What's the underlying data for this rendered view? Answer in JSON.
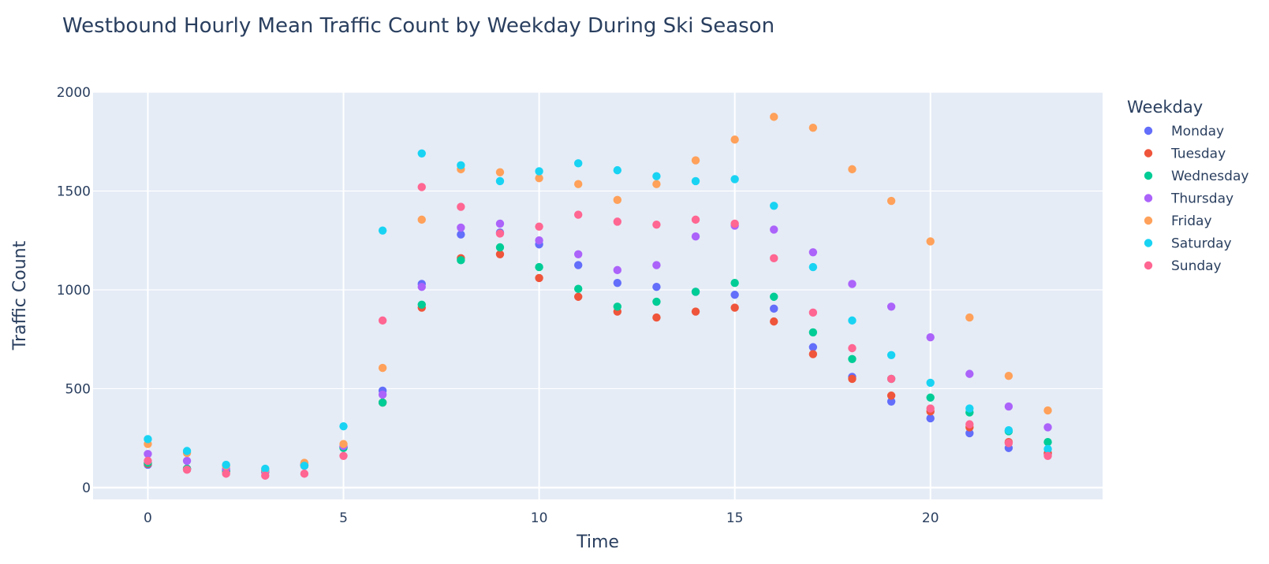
{
  "chart_data": {
    "type": "scatter",
    "title": "Westbound Hourly Mean Traffic Count by Weekday During Ski Season",
    "xlabel": "Time",
    "ylabel": "Traffic Count",
    "xlim": [
      -1.4,
      24.4
    ],
    "ylim": [
      -60,
      2000
    ],
    "x_ticks": [
      0,
      5,
      10,
      15,
      20
    ],
    "y_ticks": [
      0,
      500,
      1000,
      1500,
      2000
    ],
    "grid": true,
    "legend_title": "Weekday",
    "legend_position": "right",
    "x": [
      0,
      1,
      2,
      3,
      4,
      5,
      6,
      7,
      8,
      9,
      10,
      11,
      12,
      13,
      14,
      15,
      16,
      17,
      18,
      19,
      20,
      21,
      22,
      23
    ],
    "series": [
      {
        "name": "Monday",
        "color": "#636efa",
        "values": [
          115,
          95,
          85,
          80,
          115,
          205,
          490,
          1030,
          1280,
          1290,
          1230,
          1125,
          1035,
          1015,
          990,
          975,
          905,
          710,
          560,
          435,
          350,
          275,
          200,
          170
        ]
      },
      {
        "name": "Tuesday",
        "color": "#ef553b",
        "values": [
          120,
          95,
          80,
          80,
          110,
          205,
          430,
          910,
          1160,
          1180,
          1060,
          965,
          890,
          860,
          890,
          910,
          840,
          675,
          550,
          465,
          385,
          305,
          230,
          175
        ]
      },
      {
        "name": "Wednesday",
        "color": "#00cc96",
        "values": [
          125,
          95,
          85,
          80,
          115,
          200,
          430,
          925,
          1150,
          1215,
          1115,
          1005,
          915,
          940,
          990,
          1035,
          965,
          785,
          650,
          550,
          455,
          380,
          285,
          230
        ]
      },
      {
        "name": "Thursday",
        "color": "#ab63fa",
        "values": [
          170,
          135,
          95,
          80,
          120,
          210,
          470,
          1015,
          1315,
          1335,
          1250,
          1180,
          1100,
          1125,
          1270,
          1325,
          1305,
          1190,
          1030,
          915,
          760,
          575,
          410,
          305
        ]
      },
      {
        "name": "Friday",
        "color": "#ffa15a",
        "values": [
          220,
          175,
          110,
          90,
          125,
          220,
          605,
          1355,
          1610,
          1595,
          1565,
          1535,
          1455,
          1535,
          1655,
          1760,
          1875,
          1820,
          1610,
          1450,
          1245,
          860,
          565,
          390
        ]
      },
      {
        "name": "Saturday",
        "color": "#19d3f3",
        "values": [
          245,
          185,
          115,
          95,
          110,
          310,
          1300,
          1690,
          1630,
          1550,
          1600,
          1640,
          1605,
          1575,
          1550,
          1560,
          1425,
          1115,
          845,
          670,
          530,
          400,
          290,
          195
        ]
      },
      {
        "name": "Sunday",
        "color": "#ff6692",
        "values": [
          135,
          90,
          70,
          60,
          70,
          160,
          845,
          1520,
          1420,
          1285,
          1320,
          1380,
          1345,
          1330,
          1355,
          1335,
          1160,
          885,
          705,
          550,
          400,
          320,
          225,
          160
        ]
      }
    ]
  }
}
